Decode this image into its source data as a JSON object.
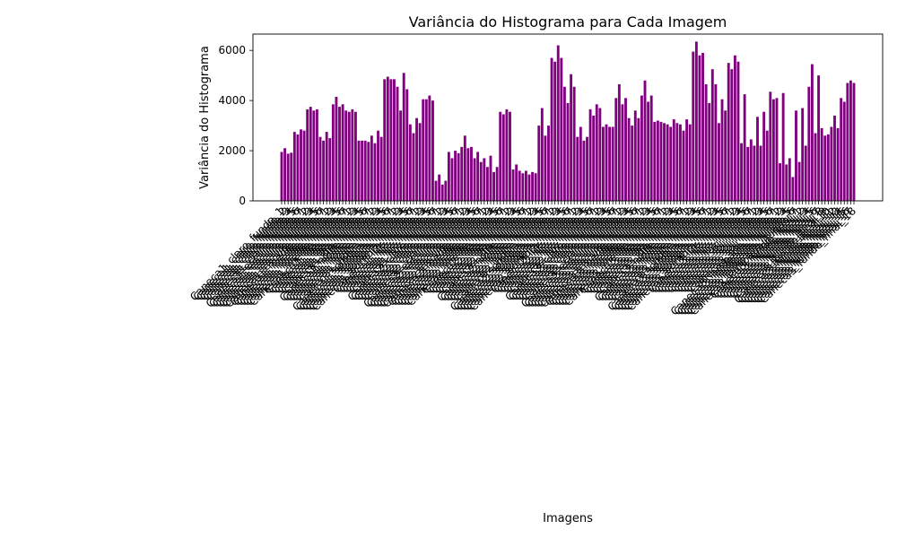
{
  "chart_data": {
    "type": "bar",
    "title": "Variância do Histograma para Cada Imagem",
    "xlabel": "Imagens",
    "ylabel": "Variância do Histograma",
    "ylim": [
      0,
      6650
    ],
    "yticks": [
      0,
      2000,
      4000,
      6000
    ],
    "grid": false,
    "bar_color": "#800080",
    "categories": [
      "Caneca1_claro_fundo_1",
      "Caneca1_claro_fundo_2",
      "Caneca1_claro_fundo_3",
      "Caneca1_claro_fundo_4",
      "Caneca1_claro_fundo_5",
      "Caneca1_claro_fundo_6",
      "Caneca1_claro_fundo_7",
      "Caneca1_escuro_fundo_1",
      "Caneca1_escuro_fundo_2",
      "Caneca1_escuro_fundo_3",
      "Caneca1_escuro_fundo_4",
      "Caneca1_escuro_fundo_5",
      "Caneca1_escuro_fundo_6",
      "Caneca1_escuro_fundo_7",
      "Caneca1_medio_fundo_1",
      "Caneca1_medio_fundo_2",
      "Caneca1_medio_fundo_3",
      "Caneca1_medio_fundo_4",
      "Caneca1_medio_fundo_5",
      "Caneca1_medio_fundo_6",
      "Caneca1_medio_fundo_7",
      "Caneca1_dia_fundo_1",
      "Caneca1_dia_fundo_2",
      "Caneca1_dia_fundo_3",
      "Caneca1_dia_fundo_4",
      "Caneca1_dia_fundo_5",
      "Caneca1_dia_fundo_6",
      "Caneca1_dia_fundo_7",
      "Caneca1_noite_fundo_1",
      "Caneca1_noite_fundo_2",
      "Caneca1_noite_fundo_3",
      "Caneca1_noite_fundo_4",
      "Caneca1_noite_fundo_5",
      "Caneca1_noite_fundo_6",
      "Caneca1_noite_fundo_7",
      "Caneca1_sombra_fundo_1",
      "Caneca1_sombra_fundo_2",
      "Caneca1_sombra_fundo_3",
      "Caneca1_sombra_fundo_4",
      "Caneca1_sombra_fundo_5",
      "Caneca1_sombra_fundo_6",
      "Caneca1_sombra_fundo_7",
      "Caneca1_luz_fundo_1",
      "Caneca1_luz_fundo_2",
      "Caneca1_luz_fundo_3",
      "Caneca1_luz_fundo_4",
      "Caneca1_luz_fundo_5",
      "Caneca1_luz_fundo_6",
      "Caneca1_luz_fundo_7",
      "Caneca2_claro_fundo_1",
      "Caneca2_claro_fundo_2",
      "Caneca2_claro_fundo_3",
      "Caneca2_claro_fundo_4",
      "Caneca2_claro_fundo_5",
      "Caneca2_claro_fundo_6",
      "Caneca2_claro_fundo_7",
      "Caneca2_escuro_fundo_1",
      "Caneca2_escuro_fundo_2",
      "Caneca2_escuro_fundo_3",
      "Caneca2_escuro_fundo_4",
      "Caneca2_escuro_fundo_5",
      "Caneca2_escuro_fundo_6",
      "Caneca2_escuro_fundo_7",
      "Caneca2_medio_fundo_1",
      "Caneca2_medio_fundo_2",
      "Caneca2_medio_fundo_3",
      "Caneca2_medio_fundo_4",
      "Caneca2_medio_fundo_5",
      "Caneca2_medio_fundo_6",
      "Caneca2_medio_fundo_7",
      "Caneca2_dia_fundo_1",
      "Caneca2_dia_fundo_2",
      "Caneca2_dia_fundo_3",
      "Caneca2_dia_fundo_4",
      "Caneca2_dia_fundo_5",
      "Caneca2_dia_fundo_6",
      "Caneca2_dia_fundo_7",
      "Caneca2_noite_fundo_1",
      "Caneca2_noite_fundo_2",
      "Caneca2_noite_fundo_3",
      "Caneca2_noite_fundo_4",
      "Caneca2_noite_fundo_5",
      "Caneca2_noite_fundo_6",
      "Caneca2_noite_fundo_7",
      "Caneca2_sombra_fundo_1",
      "Caneca2_sombra_fundo_2",
      "Caneca2_sombra_fundo_3",
      "Caneca2_sombra_fundo_4",
      "Caneca2_sombra_fundo_5",
      "Caneca2_sombra_fundo_6",
      "Caneca2_sombra_fundo_7",
      "Caneca2_luz_fundo_1",
      "Caneca2_luz_fundo_2",
      "Caneca2_luz_fundo_3",
      "Caneca2_luz_fundo_4",
      "Caneca2_luz_fundo_5",
      "Caneca2_luz_fundo_6",
      "Caneca2_luz_fundo_7",
      "Caneca3_claro_fundo_1",
      "Caneca3_claro_fundo_2",
      "Caneca3_claro_fundo_3",
      "Caneca3_claro_fundo_4",
      "Caneca3_claro_fundo_5",
      "Caneca3_claro_fundo_6",
      "Caneca3_claro_fundo_7",
      "Caneca3_escuro_fundo_1",
      "Caneca3_escuro_fundo_2",
      "Caneca3_escuro_fundo_3",
      "Caneca3_escuro_fundo_4",
      "Caneca3_escuro_fundo_5",
      "Caneca3_escuro_fundo_6",
      "Caneca3_escuro_fundo_7",
      "Caneca3_medio_fundo_1",
      "Caneca3_medio_fundo_2",
      "Caneca3_medio_fundo_3",
      "Caneca3_medio_fundo_4",
      "Caneca3_medio_fundo_5",
      "Caneca3_medio_fundo_6",
      "Caneca3_medio_fundo_7",
      "Caneca3_dia_fundo_1",
      "Caneca3_dia_fundo_2",
      "Caneca3_dia_fundo_3",
      "Caneca3_dia_fundo_4",
      "Caneca3_dia_fundo_5",
      "Caneca3_dia_fundo_6",
      "Caneca3_dia_fundo_7",
      "Caneca3_noite_fundo_1",
      "Caneca3_noite_fundo_2",
      "Caneca3_noite_fundo_3",
      "Caneca3_noite_fundo_4",
      "Caneca3_noite_fundo_5",
      "Caneca3_noite_fundo_6",
      "Caneca3_noite_fundo_7",
      "Caneca3_sombra_fundo_1",
      "Caneca3_sombra_fundo_2",
      "Caneca3_sombra_fundo_3",
      "Caneca3_sombra_fundo_4",
      "Caneca3_sombra_fundo_5",
      "Caneca3_sombra_fundo_6",
      "Caneca3_sombra_fundo_7",
      "Caneca3_luz_fundo_1",
      "Caneca3_luz_fundo_2",
      "Caneca3_luz_fundo_3",
      "Caneca3_luz_fundo_4",
      "Caneca3_luz_fundo_5",
      "Caneca3_luz_fundo_6",
      "Caneca3_luz_fundo_7",
      "Caneca3_sol_fundo_1",
      "Caneca3_sol_fundo_2",
      "Caneca3_sol_fundo_3",
      "Caneca3_sol_fundo_4",
      "Caneca3_sol_fundo_5",
      "Caneca3_sol_fundo_6",
      "Caneca3_sol_fundo_7",
      "Caneca3_lampada_fundo_1",
      "Caneca3_lampada_fundo_2",
      "Caneca3_lampada_fundo_3",
      "Caneca3_lampada_fundo_4",
      "Caneca3_lampada_fundo_5",
      "Caneca3_lampada_fundo_6",
      "Caneca3_lampada_fundo_7",
      "Caneca3_fundo_final_1",
      "Caneca3_fundo_final_2",
      "Caneca3_fundo_final_3",
      "Caneca3_fundo_final_4",
      "Caneca3_fundo_final_5",
      "Caneca3_fundo_final_6",
      "Caneca3_fundo_final_7",
      "Caneca3_fundo_final_8",
      "Caneca3_fundo_final_9",
      "Caneca3_fundo_final_10",
      "Caneca3_fundo_final_11",
      "Caneca3_fundo_final_12",
      "Caneca3_fundo_final_13",
      "Caneca3_fundo_final_14",
      "Caneca3_fundo_final_15",
      "Caneca3_fundo_final_16",
      "Caneca3_fundo_final_17",
      "Caneca3_fundo_final_18"
    ],
    "values": [
      1950,
      2100,
      1880,
      1920,
      2750,
      2650,
      2850,
      2800,
      3650,
      3750,
      3600,
      3650,
      2550,
      2400,
      2750,
      2500,
      3850,
      4150,
      3750,
      3850,
      3600,
      3550,
      3650,
      3550,
      2400,
      2400,
      2400,
      2350,
      2600,
      2300,
      2800,
      2550,
      4850,
      4950,
      4850,
      4850,
      4550,
      3600,
      5100,
      4450,
      3050,
      2700,
      3300,
      3100,
      4050,
      4050,
      4200,
      4000,
      800,
      1050,
      650,
      800,
      1950,
      1700,
      2000,
      1900,
      2150,
      2600,
      2100,
      2150,
      1700,
      1950,
      1550,
      1700,
      1350,
      1800,
      1150,
      1350,
      3550,
      3450,
      3650,
      3550,
      1250,
      1450,
      1200,
      1100,
      1200,
      1050,
      1150,
      1100,
      3000,
      3700,
      2600,
      3000,
      5700,
      5550,
      6200,
      5700,
      4550,
      3900,
      5050,
      4550,
      2550,
      2950,
      2400,
      2550,
      3650,
      3400,
      3850,
      3700,
      2950,
      3050,
      2950,
      2950,
      4100,
      4650,
      3850,
      4100,
      3300,
      3000,
      3600,
      3300,
      4200,
      4800,
      3950,
      4200,
      3150,
      3200,
      3150,
      3100,
      3050,
      2950,
      3250,
      3100,
      3050,
      2800,
      3250,
      3050,
      5950,
      6350,
      5800,
      5900,
      4650,
      3900,
      5250,
      4650,
      3100,
      4050,
      3600,
      5500,
      5250,
      5800,
      5550,
      2300,
      4250,
      2150,
      2450,
      2200,
      3350,
      2200,
      3550,
      2800,
      4350,
      4050,
      4100,
      1500,
      4300,
      1450,
      1700,
      950,
      3600,
      1550,
      3700,
      2200,
      4550,
      5450,
      2700,
      5000,
      2900,
      2600,
      2650,
      2950,
      3400,
      2900,
      4100,
      3950,
      4700,
      4800,
      4700
    ]
  }
}
